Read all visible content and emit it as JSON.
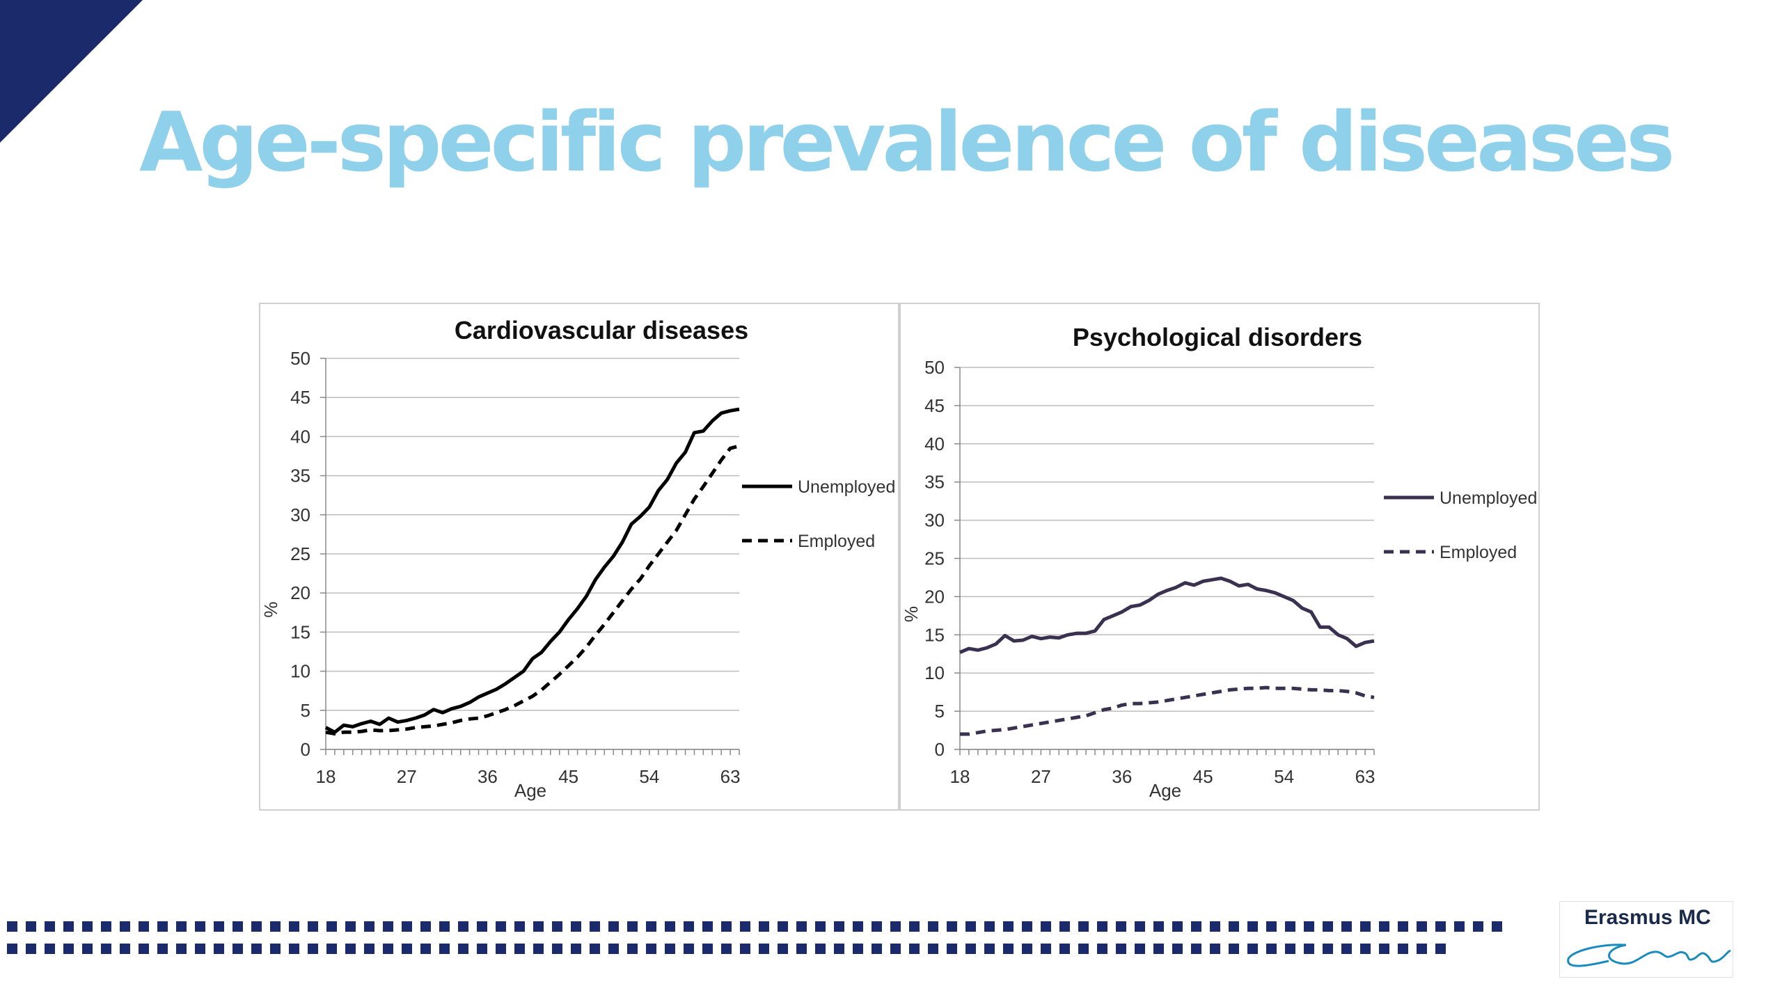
{
  "slide": {
    "title": "Age-specific prevalence of diseases",
    "logo_text": "Erasmus MC",
    "colors": {
      "title": "#8fd0ea",
      "corner": "#1b2a6b",
      "dots": "#1b2a6b",
      "cvd_lines": "#000000",
      "psych_lines": "#3a3050"
    }
  },
  "chart_data": [
    {
      "type": "line",
      "title": "Cardiovascular diseases",
      "xlabel": "Age",
      "ylabel": "%",
      "xlim": [
        18,
        64
      ],
      "ylim": [
        0,
        50
      ],
      "xticks": [
        18,
        27,
        36,
        45,
        54,
        63
      ],
      "yticks": [
        0,
        5,
        10,
        15,
        20,
        25,
        30,
        35,
        40,
        45,
        50
      ],
      "grid": true,
      "legend": "right",
      "series": [
        {
          "name": "Unemployed",
          "style": "solid",
          "x": [
            18,
            19,
            20,
            21,
            22,
            23,
            24,
            25,
            26,
            27,
            28,
            29,
            30,
            31,
            32,
            33,
            34,
            35,
            36,
            37,
            38,
            39,
            40,
            41,
            42,
            43,
            44,
            45,
            46,
            47,
            48,
            49,
            50,
            51,
            52,
            53,
            54,
            55,
            56,
            57,
            58,
            59,
            60,
            61,
            62,
            63,
            64
          ],
          "values": [
            2.8,
            2.2,
            3.1,
            2.9,
            3.3,
            3.6,
            3.2,
            4.0,
            3.5,
            3.7,
            4.0,
            4.4,
            5.1,
            4.7,
            5.2,
            5.5,
            6.0,
            6.7,
            7.2,
            7.7,
            8.4,
            9.2,
            10.0,
            11.6,
            12.4,
            13.8,
            15.0,
            16.6,
            18.0,
            19.6,
            21.7,
            23.3,
            24.7,
            26.5,
            28.8,
            29.8,
            31.0,
            33.1,
            34.5,
            36.6,
            38.0,
            40.5,
            40.7,
            42.0,
            43.0,
            43.3,
            43.5
          ]
        },
        {
          "name": "Employed",
          "style": "dashed",
          "x": [
            18,
            19,
            20,
            21,
            22,
            23,
            24,
            25,
            26,
            27,
            28,
            29,
            30,
            31,
            32,
            33,
            34,
            35,
            36,
            37,
            38,
            39,
            40,
            41,
            42,
            43,
            44,
            45,
            46,
            47,
            48,
            49,
            50,
            51,
            52,
            53,
            54,
            55,
            56,
            57,
            58,
            59,
            60,
            61,
            62,
            63,
            64
          ],
          "values": [
            2.2,
            2.0,
            2.2,
            2.2,
            2.3,
            2.5,
            2.4,
            2.4,
            2.5,
            2.6,
            2.8,
            2.9,
            3.0,
            3.2,
            3.4,
            3.7,
            3.9,
            4.0,
            4.3,
            4.7,
            5.1,
            5.6,
            6.2,
            6.8,
            7.6,
            8.6,
            9.6,
            10.7,
            11.8,
            13.1,
            14.6,
            16.0,
            17.5,
            19.0,
            20.5,
            21.8,
            23.5,
            25.0,
            26.5,
            28.0,
            30.0,
            32.0,
            33.6,
            35.3,
            37.0,
            38.5,
            38.8
          ]
        }
      ]
    },
    {
      "type": "line",
      "title": "Psychological disorders",
      "xlabel": "Age",
      "ylabel": "%",
      "xlim": [
        18,
        64
      ],
      "ylim": [
        0,
        50
      ],
      "xticks": [
        18,
        27,
        36,
        45,
        54,
        63
      ],
      "yticks": [
        0,
        5,
        10,
        15,
        20,
        25,
        30,
        35,
        40,
        45,
        50
      ],
      "grid": true,
      "legend": "right",
      "series": [
        {
          "name": "Unemployed",
          "style": "solid",
          "x": [
            18,
            19,
            20,
            21,
            22,
            23,
            24,
            25,
            26,
            27,
            28,
            29,
            30,
            31,
            32,
            33,
            34,
            35,
            36,
            37,
            38,
            39,
            40,
            41,
            42,
            43,
            44,
            45,
            46,
            47,
            48,
            49,
            50,
            51,
            52,
            53,
            54,
            55,
            56,
            57,
            58,
            59,
            60,
            61,
            62,
            63,
            64
          ],
          "values": [
            12.7,
            13.2,
            13.0,
            13.3,
            13.8,
            14.9,
            14.2,
            14.3,
            14.8,
            14.5,
            14.7,
            14.6,
            15.0,
            15.2,
            15.2,
            15.5,
            17.0,
            17.5,
            18.0,
            18.7,
            18.9,
            19.5,
            20.3,
            20.8,
            21.2,
            21.8,
            21.5,
            22.0,
            22.2,
            22.4,
            22.0,
            21.4,
            21.6,
            21.0,
            20.8,
            20.5,
            20.0,
            19.5,
            18.5,
            18.0,
            16.0,
            16.0,
            15.0,
            14.5,
            13.5,
            14.0,
            14.2
          ]
        },
        {
          "name": "Employed",
          "style": "dashed",
          "x": [
            18,
            19,
            20,
            21,
            22,
            23,
            24,
            25,
            26,
            27,
            28,
            29,
            30,
            31,
            32,
            33,
            34,
            35,
            36,
            37,
            38,
            39,
            40,
            41,
            42,
            43,
            44,
            45,
            46,
            47,
            48,
            49,
            50,
            51,
            52,
            53,
            54,
            55,
            56,
            57,
            58,
            59,
            60,
            61,
            62,
            63,
            64
          ],
          "values": [
            2.0,
            2.0,
            2.2,
            2.4,
            2.5,
            2.6,
            2.8,
            3.0,
            3.2,
            3.4,
            3.6,
            3.8,
            4.0,
            4.2,
            4.4,
            4.8,
            5.2,
            5.4,
            5.8,
            6.0,
            6.0,
            6.1,
            6.2,
            6.4,
            6.6,
            6.8,
            7.0,
            7.2,
            7.4,
            7.6,
            7.8,
            7.9,
            8.0,
            8.0,
            8.1,
            8.0,
            8.0,
            8.0,
            7.9,
            7.8,
            7.8,
            7.7,
            7.7,
            7.6,
            7.4,
            7.0,
            6.8
          ]
        }
      ]
    }
  ]
}
